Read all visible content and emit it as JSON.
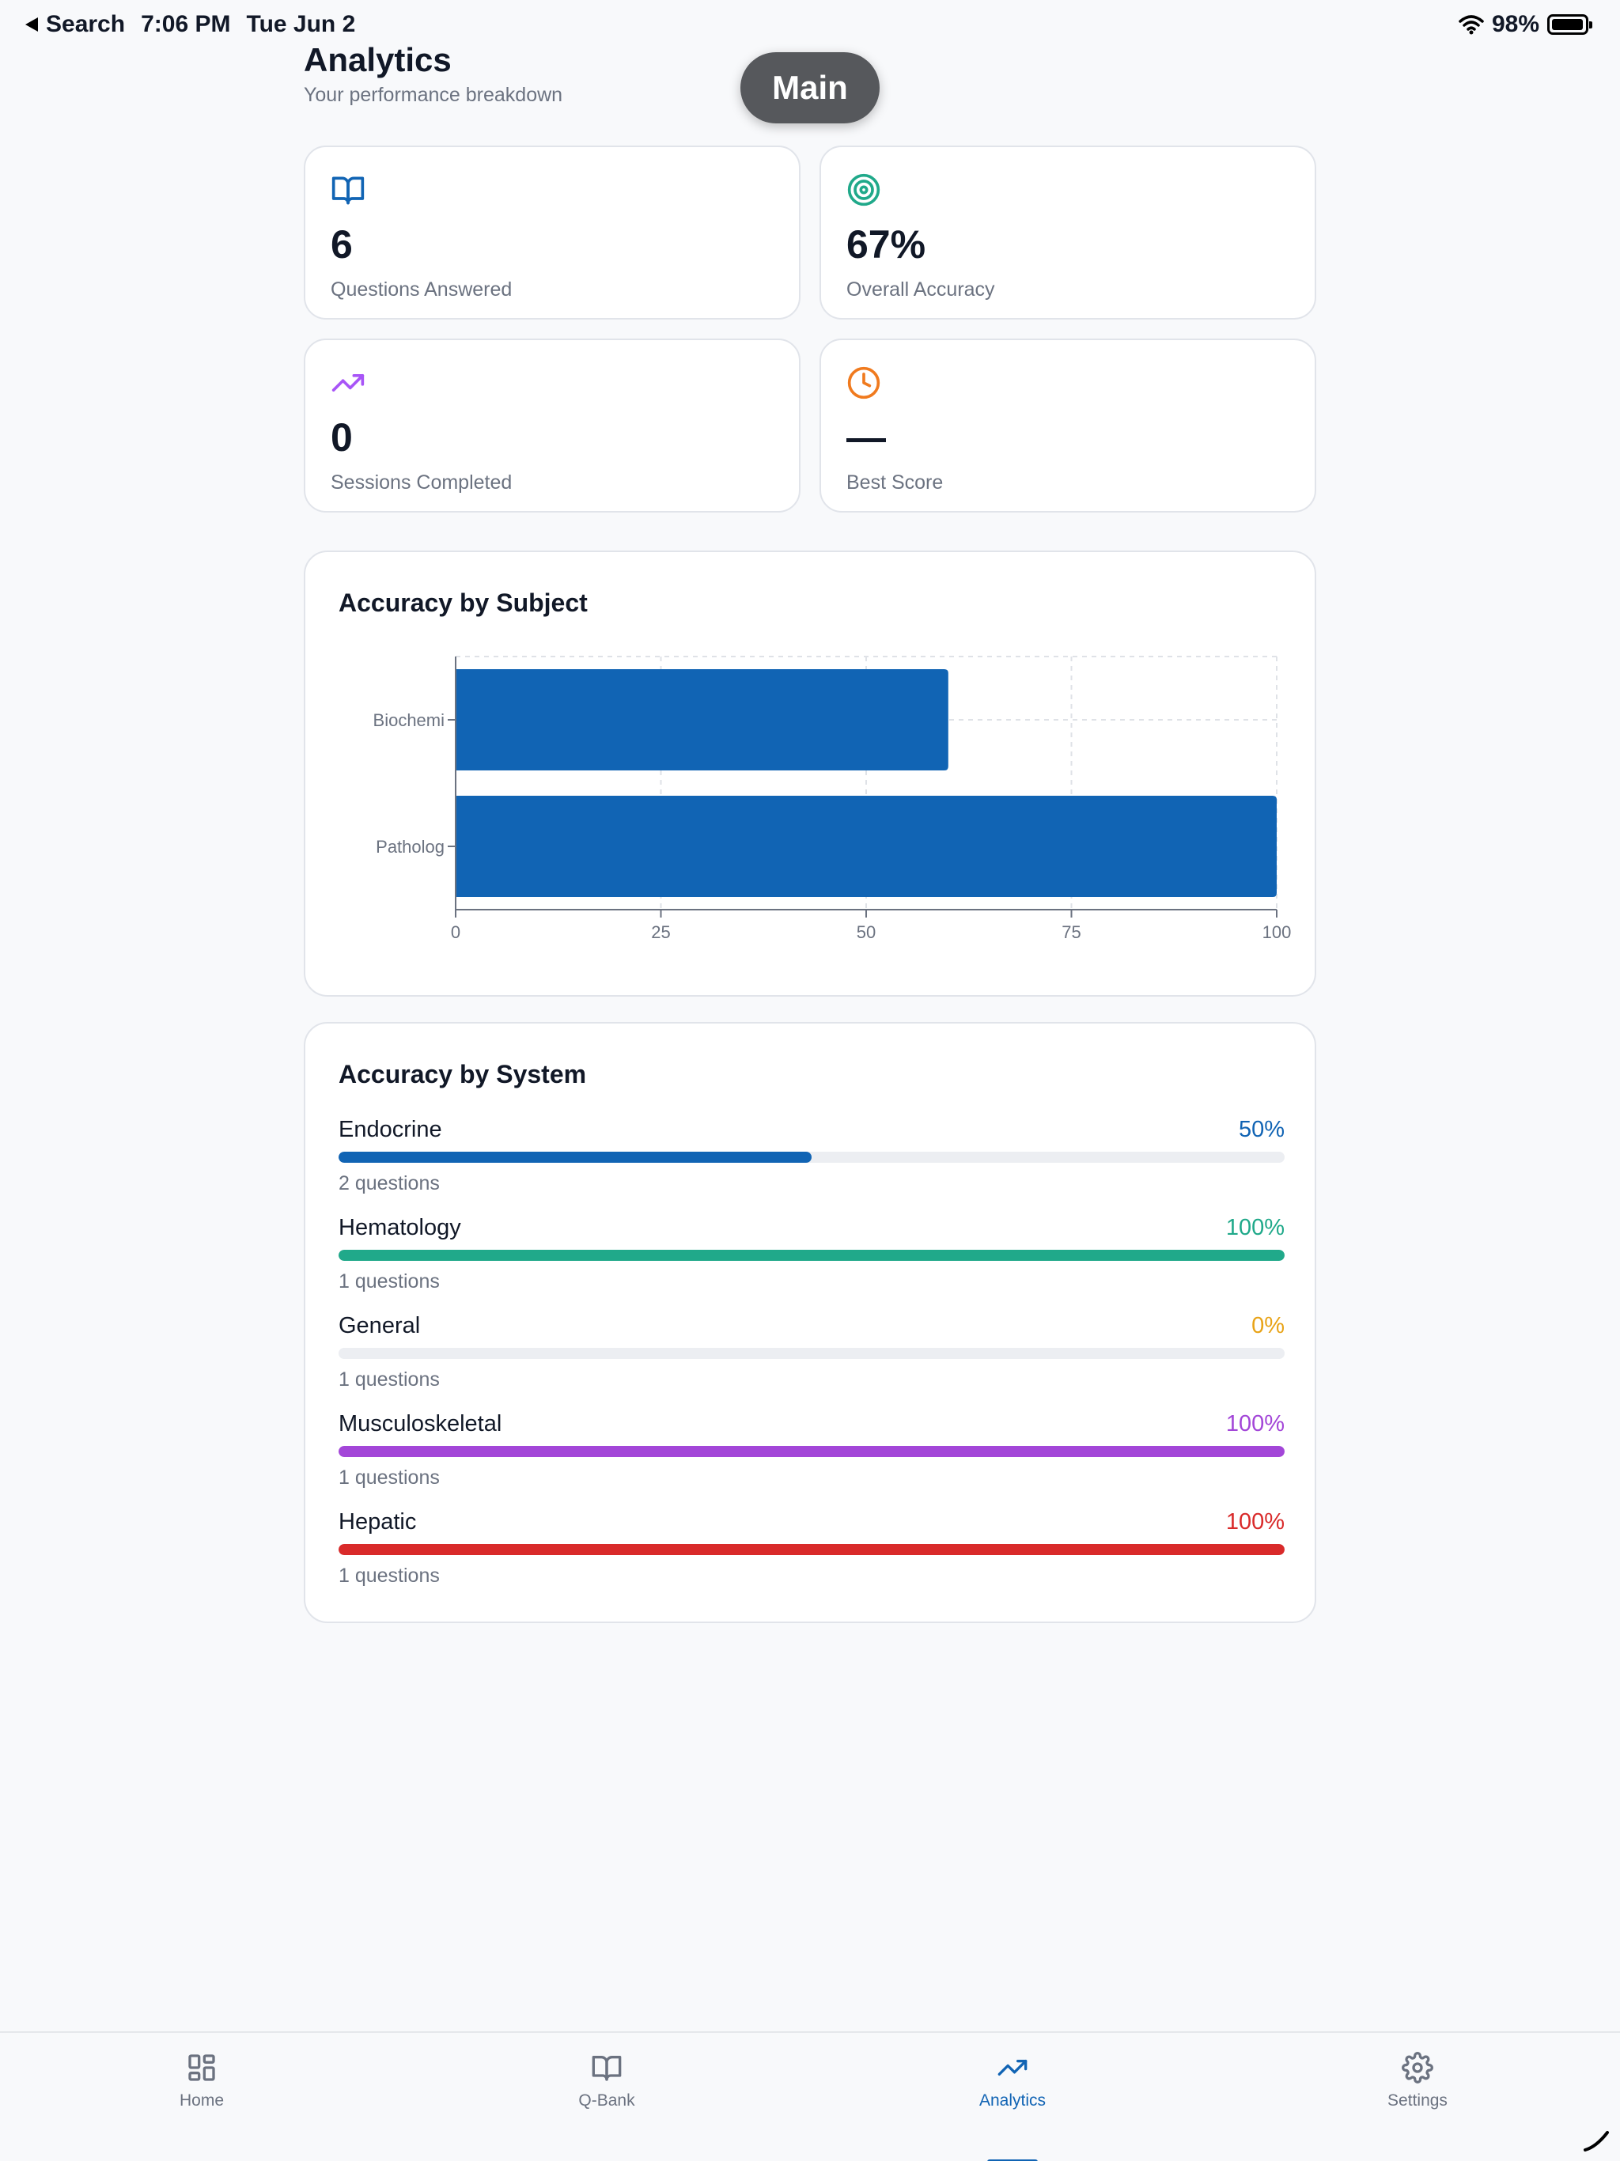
{
  "status_bar": {
    "back_label": "Search",
    "time": "7:06 PM",
    "date": "Tue Jun 2",
    "battery": "98%",
    "battery_level": 0.98
  },
  "pill": {
    "label": "Main"
  },
  "header": {
    "title": "Analytics",
    "subtitle": "Your performance breakdown"
  },
  "stats": [
    {
      "icon": "book-open-icon",
      "value": "6",
      "label": "Questions Answered",
      "color": "#1164b4"
    },
    {
      "icon": "target-icon",
      "value": "67%",
      "label": "Overall Accuracy",
      "color": "#20a98a"
    },
    {
      "icon": "trending-up-icon",
      "value": "0",
      "label": "Sessions Completed",
      "color": "#a855f7"
    },
    {
      "icon": "clock-icon",
      "value": "—",
      "label": "Best Score",
      "color": "#f07a1e"
    }
  ],
  "subject_panel": {
    "title": "Accuracy by Subject"
  },
  "chart_data": {
    "type": "bar",
    "orientation": "horizontal",
    "categories": [
      "Biochemi",
      "Patholog"
    ],
    "values": [
      60,
      100
    ],
    "xlim": [
      0,
      100
    ],
    "xticks": [
      "0",
      "25",
      "50",
      "75",
      "100"
    ],
    "grid": true,
    "color": "#1164b4"
  },
  "system_panel": {
    "title": "Accuracy by System",
    "items": [
      {
        "name": "Endocrine",
        "pct_label": "50%",
        "value": 0.5,
        "count": "2 questions",
        "color": "#1164b4"
      },
      {
        "name": "Hematology",
        "pct_label": "100%",
        "value": 1.0,
        "count": "1 questions",
        "color": "#20a98a"
      },
      {
        "name": "General",
        "pct_label": "0%",
        "value": 0.0,
        "count": "1 questions",
        "color": "#e8a317"
      },
      {
        "name": "Musculoskeletal",
        "pct_label": "100%",
        "value": 1.0,
        "count": "1 questions",
        "color": "#a346d8"
      },
      {
        "name": "Hepatic",
        "pct_label": "100%",
        "value": 1.0,
        "count": "1 questions",
        "color": "#d92a2a"
      }
    ]
  },
  "tabs": [
    {
      "icon": "grid-icon",
      "label": "Home",
      "active": false
    },
    {
      "icon": "book-open-icon",
      "label": "Q-Bank",
      "active": false
    },
    {
      "icon": "trending-up-icon",
      "label": "Analytics",
      "active": true
    },
    {
      "icon": "gear-icon",
      "label": "Settings",
      "active": false
    }
  ],
  "colors": {
    "accent": "#1164b4",
    "muted": "#6b7280"
  }
}
